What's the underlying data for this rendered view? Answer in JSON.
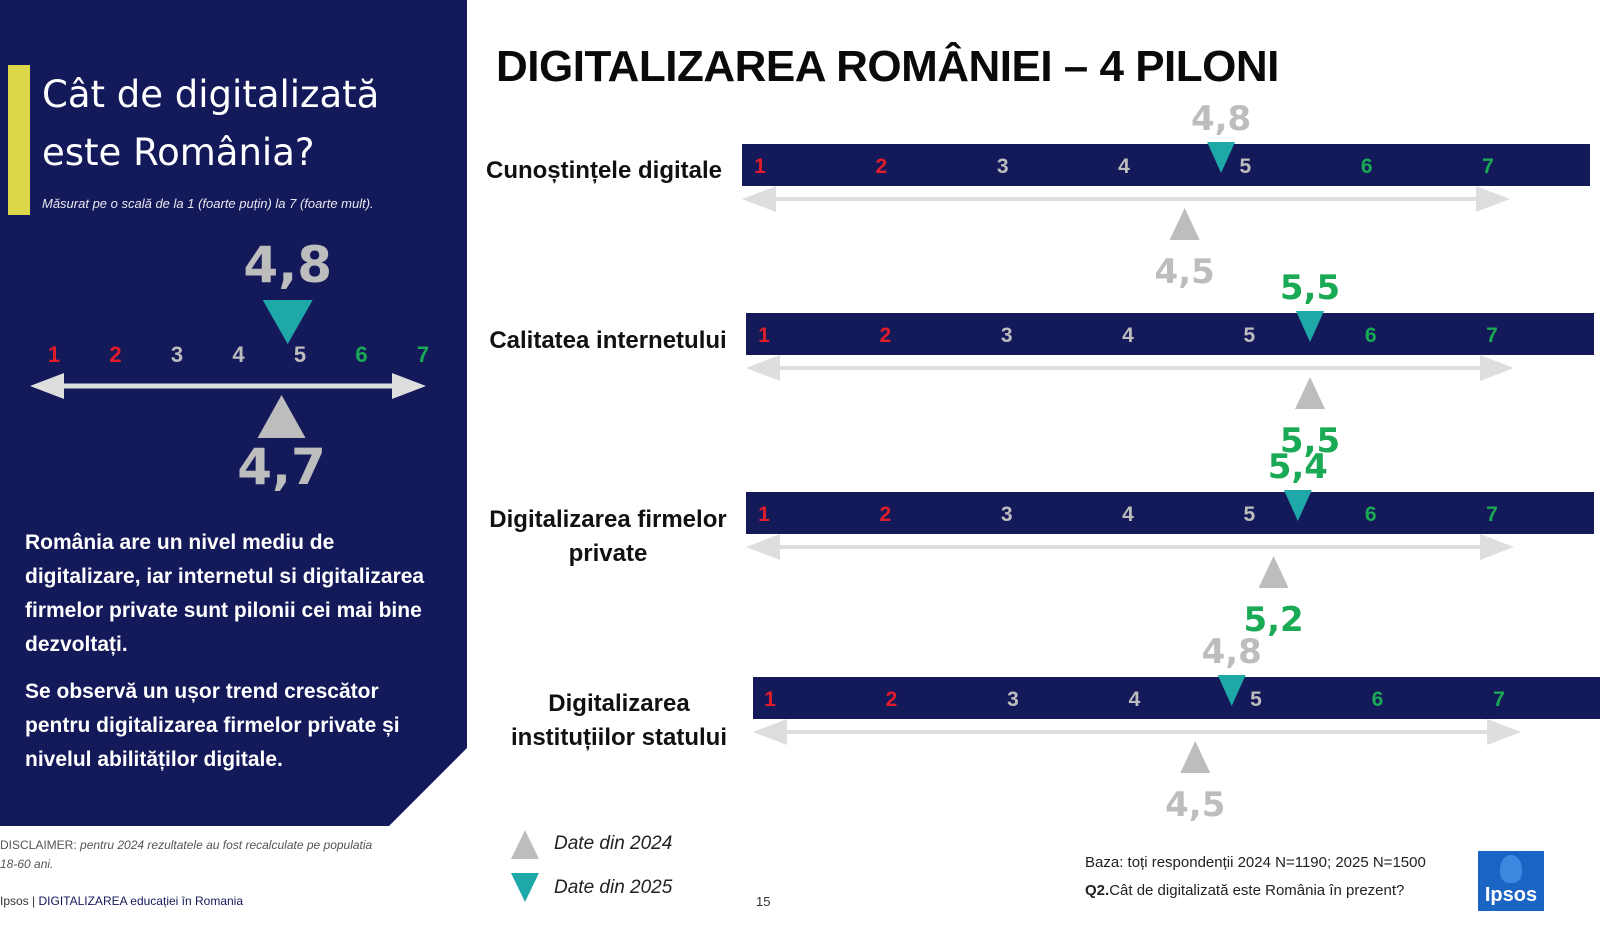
{
  "left": {
    "question": "Cât de digitalizată este România?",
    "scale_note": "Măsurat pe o scală de la 1 (foarte puțin) la  7 (foarte mult).",
    "summary_1": "România are un nivel mediu de digitalizare, iar internetul si digitalizarea firmelor private sunt pilonii cei mai bine dezvoltați.",
    "summary_2": "Se observă un ușor trend crescător pentru digitalizarea firmelor private și nivelul  abilităților digitale.",
    "disclaimer_prefix": "DISCLAIMER:",
    "disclaimer_text": " pentru 2024 rezultatele au fost recalculate pe populatia 18-60 ani.",
    "footer_brand": "Ipsos",
    "footer_sep": " | ",
    "footer_doc": "DIGITALIZAREA educației în Romania"
  },
  "page_number": "15",
  "main_title": "DIGITALIZAREA ROMÂNIEI – 4 PILONI",
  "legend": {
    "label_2024": "Date din 2024",
    "label_2025": "Date din 2025"
  },
  "base_note": "Baza: toți respondenții 2024 N=1190; 2025 N=1500",
  "q2_prefix": "Q2.",
  "q2_text": "Cât de digitalizată este România în prezent?",
  "logo_text": "Ipsos",
  "colors": {
    "navy": "#14195a",
    "red": "#e11d2b",
    "green": "#1aaa55",
    "gray": "#bdbdbd",
    "teal": "#1fa8a8",
    "accent": "#dcd64a"
  },
  "chart_data": [
    {
      "type": "scale",
      "scale": [
        1,
        2,
        3,
        4,
        5,
        6,
        7
      ],
      "tick_labels": [
        "1",
        "2",
        "3",
        "4",
        "5",
        "6",
        "7"
      ],
      "xlim": [
        1,
        7
      ],
      "label": "",
      "value_2025": 4.8,
      "label_2025": "4,8",
      "value_2024": 4.7,
      "label_2024": "4,7"
    },
    {
      "type": "scale",
      "label": "Cunoștințele digitale",
      "scale": [
        1,
        2,
        3,
        4,
        5,
        6,
        7
      ],
      "tick_labels": [
        "1",
        "2",
        "3",
        "4",
        "5",
        "6",
        "7"
      ],
      "xlim": [
        1,
        7
      ],
      "value_2025": 4.8,
      "label_2025": "4,8",
      "value_2024": 4.5,
      "label_2024": "4,5"
    },
    {
      "type": "scale",
      "label": "Calitatea internetului",
      "scale": [
        1,
        2,
        3,
        4,
        5,
        6,
        7
      ],
      "tick_labels": [
        "1",
        "2",
        "3",
        "4",
        "5",
        "6",
        "7"
      ],
      "xlim": [
        1,
        7
      ],
      "value_2025": 5.5,
      "label_2025": "5,5",
      "value_2024": 5.5,
      "label_2024": "5,5"
    },
    {
      "type": "scale",
      "label": "Digitalizarea firmelor private",
      "scale": [
        1,
        2,
        3,
        4,
        5,
        6,
        7
      ],
      "tick_labels": [
        "1",
        "2",
        "3",
        "4",
        "5",
        "6",
        "7"
      ],
      "xlim": [
        1,
        7
      ],
      "value_2025": 5.4,
      "label_2025": "5,4",
      "value_2024": 5.2,
      "label_2024": "5,2"
    },
    {
      "type": "scale",
      "label": "Digitalizarea instituțiilor statului",
      "scale": [
        1,
        2,
        3,
        4,
        5,
        6,
        7
      ],
      "tick_labels": [
        "1",
        "2",
        "3",
        "4",
        "5",
        "6",
        "7"
      ],
      "xlim": [
        1,
        7
      ],
      "value_2025": 4.8,
      "label_2025": "4,8",
      "value_2024": 4.5,
      "label_2024": "4,5"
    }
  ]
}
